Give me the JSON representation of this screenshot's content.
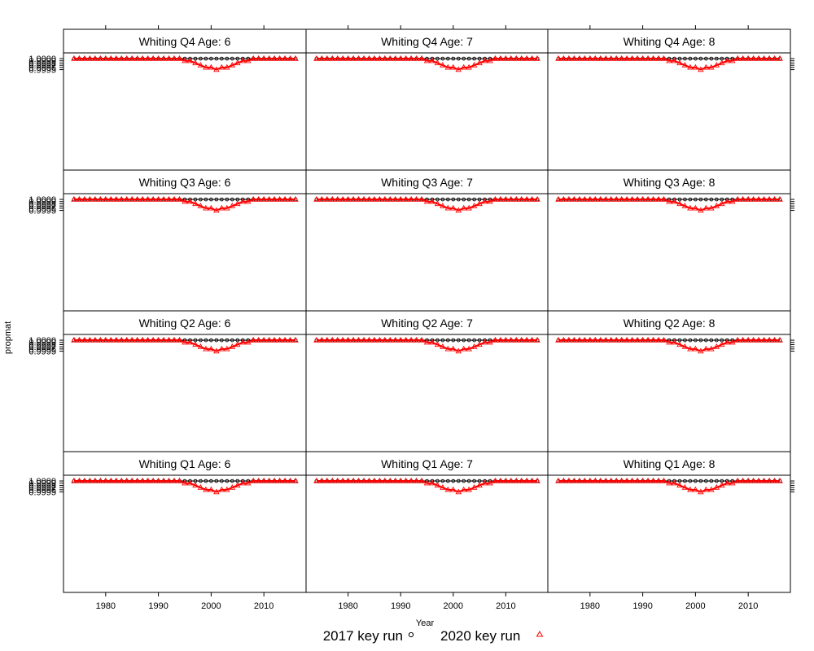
{
  "chart_data": {
    "type": "line",
    "xlabel": "Year",
    "ylabel": "propmat",
    "xticks": [
      1980,
      1990,
      2000,
      2010
    ],
    "yticks": [
      "0.9995",
      "0.9996",
      "0.9997",
      "0.9998",
      "0.9999",
      "1.0000"
    ],
    "xlim": [
      1972,
      2018
    ],
    "ylim": [
      0.99494,
      1.00026
    ],
    "legend": {
      "position": "bottom",
      "entries": [
        {
          "label": "2017 key run",
          "color": "#000000",
          "marker": "circle"
        },
        {
          "label": "2020 key run",
          "color": "#ff0000",
          "marker": "triangle"
        }
      ]
    },
    "rows": [
      {
        "panels": [
          {
            "title": "Whiting Q4 Age: 6"
          },
          {
            "title": "Whiting Q4 Age: 7"
          },
          {
            "title": "Whiting Q4 Age: 8"
          }
        ]
      },
      {
        "panels": [
          {
            "title": "Whiting Q3 Age: 6"
          },
          {
            "title": "Whiting Q3 Age: 7"
          },
          {
            "title": "Whiting Q3 Age: 8"
          }
        ]
      },
      {
        "panels": [
          {
            "title": "Whiting Q2 Age: 6"
          },
          {
            "title": "Whiting Q2 Age: 7"
          },
          {
            "title": "Whiting Q2 Age: 8"
          }
        ]
      },
      {
        "panels": [
          {
            "title": "Whiting Q1 Age: 6"
          },
          {
            "title": "Whiting Q1 Age: 7"
          },
          {
            "title": "Whiting Q1 Age: 8"
          }
        ]
      }
    ],
    "x": [
      1974,
      1975,
      1976,
      1977,
      1978,
      1979,
      1980,
      1981,
      1982,
      1983,
      1984,
      1985,
      1986,
      1987,
      1988,
      1989,
      1990,
      1991,
      1992,
      1993,
      1994,
      1995,
      1996,
      1997,
      1998,
      1999,
      2000,
      2001,
      2002,
      2003,
      2004,
      2005,
      2006,
      2007,
      2008,
      2009,
      2010,
      2011,
      2012,
      2013,
      2014,
      2015,
      2016
    ],
    "series": [
      {
        "name": "2017 key run",
        "x_end": 2016,
        "values": [
          1,
          1,
          1,
          1,
          1,
          1,
          1,
          1,
          1,
          1,
          1,
          1,
          1,
          1,
          1,
          1,
          1,
          1,
          1,
          1,
          1,
          1,
          1,
          1,
          1,
          1,
          1,
          1,
          1,
          1,
          1,
          1,
          1,
          1,
          1,
          1,
          1,
          1,
          1,
          1,
          1,
          1,
          1
        ]
      },
      {
        "name": "2020 key run",
        "x_end": 2016,
        "values": [
          1,
          1,
          1,
          1,
          1,
          1,
          1,
          1,
          1,
          1,
          1,
          1,
          1,
          1,
          1,
          1,
          1,
          1,
          1,
          1,
          1,
          0.9999,
          0.9999,
          0.9998,
          0.9997,
          0.9996,
          0.9996,
          0.9995,
          0.9996,
          0.9996,
          0.9997,
          0.9998,
          0.9999,
          0.9999,
          1,
          1,
          1,
          1,
          1,
          1,
          1,
          1,
          1
        ]
      }
    ]
  }
}
